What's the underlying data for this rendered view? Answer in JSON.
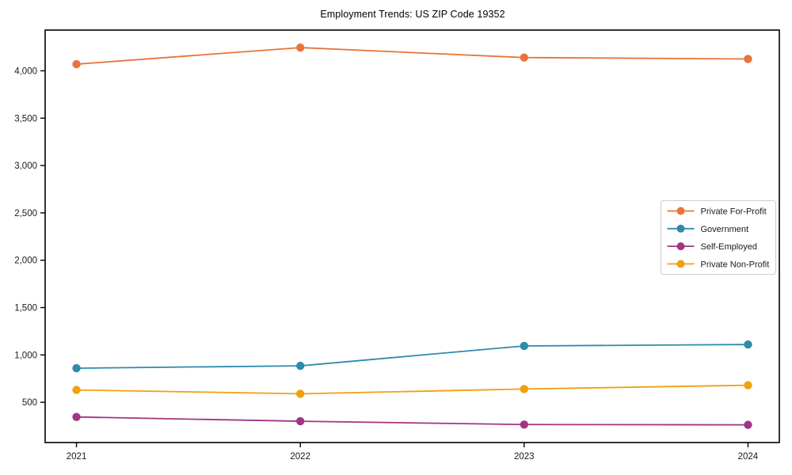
{
  "chart_data": {
    "type": "line",
    "title": "Employment Trends: US ZIP Code 19352",
    "xlabel": "",
    "ylabel": "",
    "x": [
      2021,
      2022,
      2023,
      2024
    ],
    "x_tick_labels": [
      "2021",
      "2022",
      "2023",
      "2024"
    ],
    "y_ticks": [
      500,
      1000,
      1500,
      2000,
      2500,
      3000,
      3500,
      4000
    ],
    "y_tick_labels": [
      "500",
      "1,000",
      "1,500",
      "2,000",
      "2,500",
      "3,000",
      "3,500",
      "4,000"
    ],
    "xlim": [
      2020.86,
      2024.14
    ],
    "ylim": [
      75,
      4430
    ],
    "grid": false,
    "legend_position": "center right",
    "series": [
      {
        "name": "Private For-Profit",
        "color": "#E8743B",
        "values": [
          4070,
          4245,
          4140,
          4125
        ]
      },
      {
        "name": "Government",
        "color": "#2E8BAB",
        "values": [
          860,
          885,
          1095,
          1110
        ]
      },
      {
        "name": "Self-Employed",
        "color": "#A23582",
        "values": [
          345,
          300,
          265,
          262
        ]
      },
      {
        "name": "Private Non-Profit",
        "color": "#F0A010",
        "values": [
          630,
          590,
          640,
          680
        ]
      }
    ],
    "style": {
      "background": "#ffffff",
      "spine_color": "#000000",
      "tick_color": "#000000",
      "legend_border_color": "#cccccc",
      "legend_background": "#ffffff"
    }
  }
}
